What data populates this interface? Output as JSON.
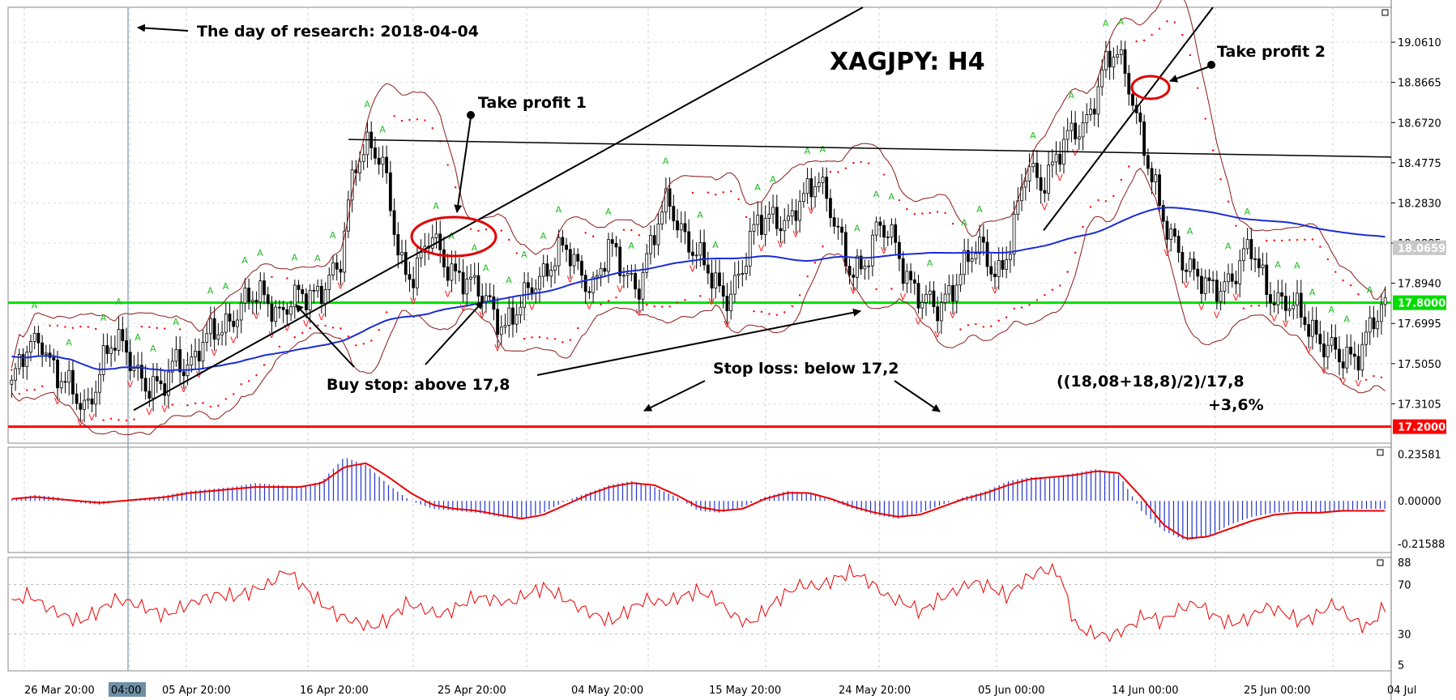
{
  "chart_data": [
    {
      "type": "candlestick",
      "title": "XAGJPY: H4",
      "y_ticks": [
        "19.0610",
        "18.8665",
        "18.6720",
        "18.4775",
        "18.2830",
        "18.0885",
        "17.8940",
        "17.6995",
        "17.5050",
        "17.3105"
      ],
      "ylim": [
        17.12,
        19.23
      ],
      "x_ticks": [
        "26 Mar 20:00",
        "04:00",
        "05 Apr 20:00",
        "16 Apr 20:00",
        "25 Apr 20:00",
        "04 May 20:00",
        "15 May 20:00",
        "24 May 20:00",
        "05 Jun 00:00",
        "14 Jun 00:00",
        "25 Jun 00:00",
        "04 Jul"
      ],
      "price_badges": [
        {
          "label": "18.0659",
          "value": 18.0659,
          "color": "#c8c8c8"
        },
        {
          "label": "17.8000",
          "value": 17.8,
          "color": "#00dd00"
        },
        {
          "label": "17.2000",
          "value": 17.2,
          "color": "#ff0000"
        }
      ],
      "close_path": [
        17.4,
        17.55,
        17.65,
        17.45,
        17.35,
        17.3,
        17.5,
        17.6,
        17.55,
        17.4,
        17.35,
        17.55,
        17.5,
        17.6,
        17.7,
        17.75,
        17.8,
        17.85,
        17.75,
        17.8,
        17.85,
        17.9,
        17.95,
        18.5,
        18.6,
        18.4,
        18.0,
        17.95,
        18.1,
        18.0,
        17.95,
        17.85,
        17.8,
        17.7,
        17.75,
        17.9,
        18.0,
        18.05,
        17.95,
        17.9,
        18.05,
        17.95,
        17.9,
        18.1,
        18.3,
        18.15,
        18.0,
        17.9,
        17.85,
        17.95,
        18.2,
        18.25,
        18.15,
        18.3,
        18.45,
        18.2,
        17.95,
        18.0,
        18.15,
        18.1,
        17.95,
        17.8,
        17.75,
        17.9,
        18.0,
        18.05,
        17.95,
        18.1,
        18.45,
        18.4,
        18.5,
        18.6,
        18.7,
        18.9,
        19.0,
        18.85,
        18.5,
        18.2,
        18.1,
        17.95,
        17.85,
        17.9,
        17.95,
        18.05,
        17.9,
        17.8,
        17.75,
        17.7,
        17.6,
        17.5,
        17.55,
        17.7,
        17.75
      ],
      "annotations": [
        {
          "text": "The day of research: 2018-04-04"
        },
        {
          "text": "Take profit 1"
        },
        {
          "text": "Take profit 2"
        },
        {
          "text": "Buy stop: above 17,8"
        },
        {
          "text": "Stop loss: below 17,2"
        },
        {
          "text": "((18,08+18,8)/2)/17,8"
        },
        {
          "text": "+3,6%"
        }
      ]
    },
    {
      "type": "histogram",
      "panel": "MACD",
      "y_ticks": [
        "0.23581",
        "0.00000",
        "-0.21588"
      ],
      "ylim": [
        -0.26,
        0.27
      ],
      "values": [
        0.01,
        0.03,
        0.02,
        -0.01,
        -0.02,
        0.0,
        0.01,
        0.03,
        0.05,
        0.06,
        0.07,
        0.09,
        0.08,
        0.07,
        0.1,
        0.22,
        0.18,
        0.08,
        0.0,
        -0.04,
        -0.05,
        -0.06,
        -0.08,
        -0.09,
        -0.06,
        0.0,
        0.04,
        0.08,
        0.1,
        0.07,
        0.02,
        -0.05,
        -0.06,
        -0.03,
        0.02,
        0.05,
        0.04,
        0.0,
        -0.04,
        -0.07,
        -0.09,
        -0.06,
        -0.02,
        0.02,
        0.05,
        0.1,
        0.12,
        0.12,
        0.14,
        0.16,
        0.13,
        -0.05,
        -0.15,
        -0.2,
        -0.18,
        -0.12,
        -0.08,
        -0.06,
        -0.05,
        -0.06,
        -0.05,
        -0.04,
        -0.04
      ],
      "signal": [
        0.01,
        0.02,
        0.01,
        0.0,
        -0.01,
        0.0,
        0.01,
        0.02,
        0.04,
        0.05,
        0.06,
        0.07,
        0.07,
        0.07,
        0.09,
        0.17,
        0.19,
        0.12,
        0.04,
        -0.02,
        -0.04,
        -0.05,
        -0.07,
        -0.09,
        -0.07,
        -0.02,
        0.03,
        0.07,
        0.09,
        0.08,
        0.03,
        -0.03,
        -0.05,
        -0.04,
        0.01,
        0.04,
        0.04,
        0.01,
        -0.03,
        -0.06,
        -0.08,
        -0.07,
        -0.03,
        0.01,
        0.04,
        0.08,
        0.11,
        0.12,
        0.13,
        0.15,
        0.14,
        0.02,
        -0.12,
        -0.19,
        -0.18,
        -0.14,
        -0.1,
        -0.07,
        -0.06,
        -0.06,
        -0.05,
        -0.05,
        -0.05
      ]
    },
    {
      "type": "line",
      "panel": "RSI",
      "y_ticks": [
        "88",
        "70",
        "30",
        "5"
      ],
      "ylim": [
        0,
        92
      ],
      "values": [
        55,
        62,
        52,
        45,
        40,
        48,
        58,
        55,
        50,
        45,
        52,
        58,
        62,
        60,
        65,
        70,
        82,
        68,
        55,
        45,
        40,
        35,
        42,
        55,
        50,
        45,
        52,
        60,
        58,
        55,
        62,
        68,
        60,
        52,
        45,
        40,
        50,
        58,
        55,
        60,
        65,
        58,
        45,
        38,
        50,
        62,
        70,
        68,
        75,
        80,
        72,
        60,
        55,
        48,
        58,
        65,
        72,
        68,
        60,
        74,
        82,
        80,
        35,
        30,
        28,
        35,
        45,
        40,
        50,
        55,
        45,
        38,
        42,
        52,
        48,
        40,
        45,
        55,
        42,
        35,
        52
      ]
    }
  ]
}
